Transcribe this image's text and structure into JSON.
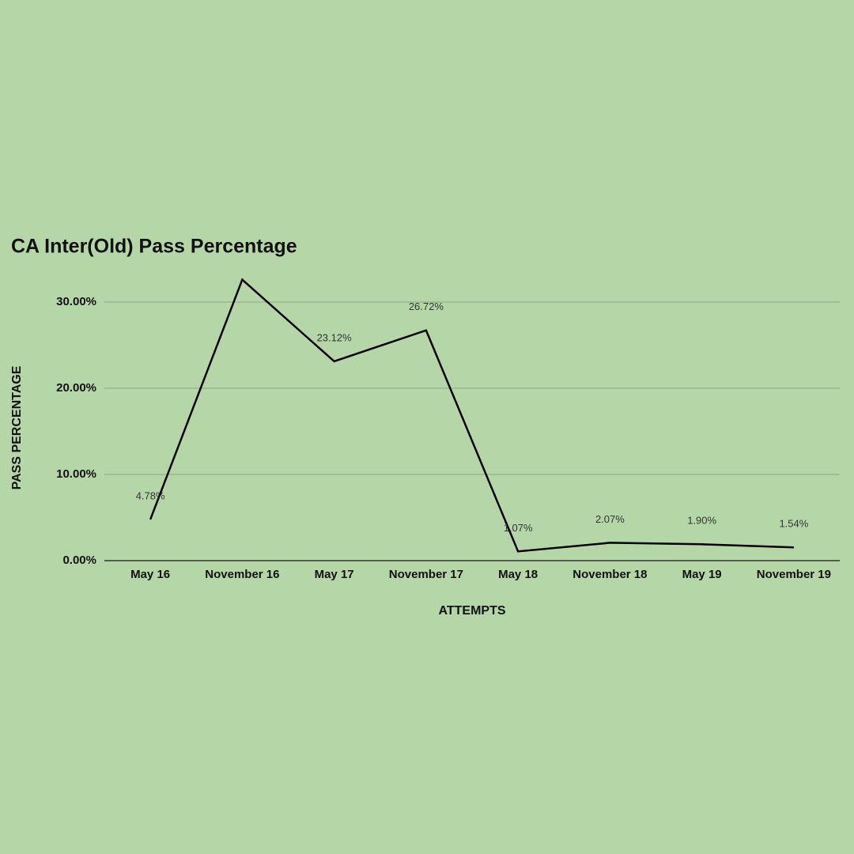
{
  "chart_data": {
    "type": "line",
    "title": "CA Inter(Old) Pass Percentage",
    "x_label": "ATTEMPTS",
    "y_label": "PASS PERCENTAGE",
    "categories": [
      "May 16",
      "November 16",
      "May 17",
      "November 17",
      "May 18",
      "November 18",
      "May 19",
      "November 19"
    ],
    "series": [
      {
        "name": "Pass Percentage",
        "color": "#000000",
        "values": [
          4.78,
          32.6,
          23.12,
          26.72,
          1.07,
          2.07,
          1.9,
          1.54
        ],
        "value_labels": [
          "4.78%",
          null,
          "23.12%",
          "26.72%",
          "1.07%",
          "2.07%",
          "1.90%",
          "1.54%"
        ]
      }
    ],
    "ylim": [
      0,
      33
    ],
    "yticks": [
      {
        "value": 0,
        "label": "0.00%"
      },
      {
        "value": 10,
        "label": "10.00%"
      },
      {
        "value": 20,
        "label": "20.00%"
      },
      {
        "value": 30,
        "label": "30.00%"
      }
    ],
    "grid": true
  }
}
